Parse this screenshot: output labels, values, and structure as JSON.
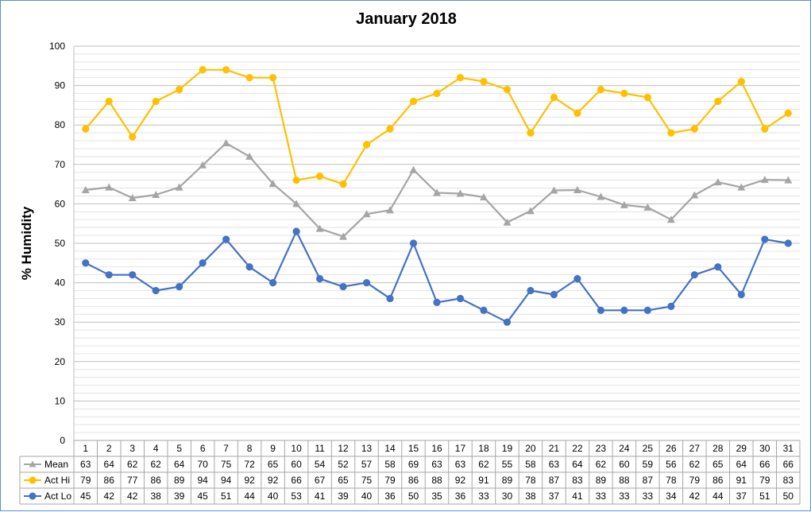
{
  "chart_data": {
    "type": "line",
    "title": "January 2018",
    "xlabel": "",
    "ylabel": "% Humidity",
    "ylim": [
      0,
      100
    ],
    "yticks": [
      0,
      10,
      20,
      30,
      40,
      50,
      60,
      70,
      80,
      90,
      100
    ],
    "grid": "horizontal minor gridlines every 2",
    "legend": "data table below plot",
    "categories": [
      "1",
      "2",
      "3",
      "4",
      "5",
      "6",
      "7",
      "8",
      "9",
      "10",
      "11",
      "12",
      "13",
      "14",
      "15",
      "16",
      "17",
      "18",
      "19",
      "20",
      "21",
      "22",
      "23",
      "24",
      "25",
      "26",
      "27",
      "28",
      "29",
      "30",
      "31"
    ],
    "series": [
      {
        "name": "Mean",
        "color": "#a5a5a5",
        "marker": "triangle",
        "values": [
          63.5,
          64.2,
          61.5,
          62.3,
          64.2,
          69.8,
          75.4,
          72.0,
          65.1,
          60.0,
          53.7,
          51.7,
          57.4,
          58.4,
          68.6,
          62.8,
          62.6,
          61.7,
          55.3,
          58.2,
          63.4,
          63.5,
          61.8,
          59.7,
          59.1,
          56.0,
          62.2,
          65.5,
          64.2,
          66.1,
          66.0
        ],
        "labels": [
          "63",
          "64",
          "62",
          "62",
          "64",
          "70",
          "75",
          "72",
          "65",
          "60",
          "54",
          "52",
          "57",
          "58",
          "69",
          "63",
          "63",
          "62",
          "55",
          "58",
          "63",
          "64",
          "62",
          "60",
          "59",
          "56",
          "62",
          "65",
          "64",
          "66",
          "66"
        ]
      },
      {
        "name": "Act Hi",
        "color": "#ffc000",
        "marker": "circle",
        "values": [
          79,
          86,
          77,
          86,
          89,
          94,
          94,
          92,
          92,
          66,
          67,
          65,
          75,
          79,
          86,
          88,
          92,
          91,
          89,
          78,
          87,
          83,
          89,
          88,
          87,
          78,
          79,
          86,
          91,
          79,
          83
        ],
        "labels": [
          "79",
          "86",
          "77",
          "86",
          "89",
          "94",
          "94",
          "92",
          "92",
          "66",
          "67",
          "65",
          "75",
          "79",
          "86",
          "88",
          "92",
          "91",
          "89",
          "78",
          "87",
          "83",
          "89",
          "88",
          "87",
          "78",
          "79",
          "86",
          "91",
          "79",
          "83"
        ]
      },
      {
        "name": "Act Lo",
        "color": "#4472c4",
        "marker": "circle",
        "values": [
          45,
          42,
          42,
          38,
          39,
          45,
          51,
          44,
          40,
          53,
          41,
          39,
          40,
          36,
          50,
          35,
          36,
          33,
          30,
          38,
          37,
          41,
          33,
          33,
          33,
          34,
          42,
          44,
          37,
          51,
          50
        ],
        "labels": [
          "45",
          "42",
          "42",
          "38",
          "39",
          "45",
          "51",
          "44",
          "40",
          "53",
          "41",
          "39",
          "40",
          "36",
          "50",
          "35",
          "36",
          "33",
          "30",
          "38",
          "37",
          "41",
          "33",
          "33",
          "33",
          "34",
          "42",
          "44",
          "37",
          "51",
          "50"
        ]
      }
    ]
  }
}
